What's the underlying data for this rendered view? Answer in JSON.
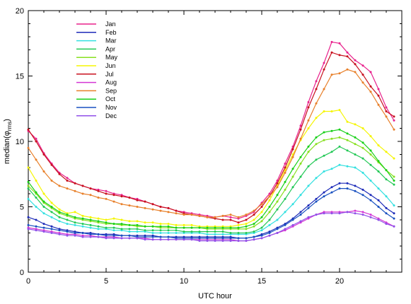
{
  "chart_data": {
    "type": "line",
    "title": "",
    "xlabel": "UTC hour",
    "ylabel": "median(φ",
    "ylabel_sub": "rms",
    "ylabel_close": ")",
    "xlim": [
      0,
      24
    ],
    "ylim": [
      0,
      20
    ],
    "xticks": [
      0,
      5,
      10,
      15,
      20
    ],
    "yticks": [
      0,
      5,
      10,
      15,
      20
    ],
    "grid": false,
    "legend_position": "top-left",
    "x": [
      0,
      0.5,
      1,
      1.5,
      2,
      2.5,
      3,
      3.5,
      4,
      4.5,
      5,
      5.5,
      6,
      6.5,
      7,
      7.5,
      8,
      8.5,
      9,
      9.5,
      10,
      10.5,
      11,
      11.5,
      12,
      12.5,
      13,
      13.5,
      14,
      14.5,
      15,
      15.5,
      16,
      16.5,
      17,
      17.5,
      18,
      18.5,
      19,
      19.5,
      20,
      20.5,
      21,
      21.5,
      22,
      22.5,
      23,
      23.5
    ],
    "series": [
      {
        "name": "Jan",
        "color": "#e8218c",
        "values": [
          10.8,
          10.2,
          9.1,
          8.3,
          7.6,
          7.2,
          6.8,
          6.6,
          6.4,
          6.3,
          6.2,
          6.0,
          5.9,
          5.7,
          5.6,
          5.4,
          5.2,
          5.0,
          4.9,
          4.7,
          4.6,
          4.5,
          4.4,
          4.3,
          4.2,
          4.3,
          4.2,
          4.1,
          4.3,
          4.6,
          5.3,
          6.0,
          7.0,
          8.3,
          9.6,
          11.2,
          13.0,
          14.6,
          16.0,
          17.6,
          17.5,
          16.8,
          16.2,
          15.8,
          15.3,
          14.0,
          12.6,
          11.6
        ]
      },
      {
        "name": "Feb",
        "color": "#1c2ab8",
        "values": [
          4.2,
          4.0,
          3.7,
          3.5,
          3.3,
          3.2,
          3.1,
          3.0,
          3.0,
          2.9,
          2.9,
          2.9,
          2.8,
          2.8,
          2.8,
          2.8,
          2.8,
          2.7,
          2.7,
          2.7,
          2.7,
          2.7,
          2.7,
          2.7,
          2.7,
          2.7,
          2.7,
          2.6,
          2.6,
          2.7,
          2.9,
          3.1,
          3.4,
          3.7,
          4.1,
          4.6,
          5.1,
          5.6,
          6.1,
          6.5,
          6.8,
          6.8,
          6.6,
          6.3,
          5.9,
          5.5,
          4.9,
          4.5
        ]
      },
      {
        "name": "Mar",
        "color": "#33e0e0",
        "values": [
          5.6,
          5.0,
          4.5,
          4.2,
          3.9,
          3.7,
          3.6,
          3.5,
          3.4,
          3.3,
          3.3,
          3.2,
          3.2,
          3.1,
          3.1,
          3.1,
          3.0,
          3.0,
          3.0,
          3.0,
          3.0,
          3.0,
          3.0,
          2.9,
          2.9,
          2.9,
          2.9,
          2.9,
          2.9,
          3.0,
          3.2,
          3.6,
          4.0,
          4.6,
          5.2,
          5.9,
          6.6,
          7.2,
          7.7,
          7.9,
          8.2,
          8.1,
          8.0,
          7.6,
          7.0,
          6.4,
          5.8,
          5.1
        ]
      },
      {
        "name": "Apr",
        "color": "#22c855",
        "values": [
          6.4,
          5.7,
          5.0,
          4.6,
          4.2,
          4.0,
          3.8,
          3.7,
          3.6,
          3.5,
          3.4,
          3.4,
          3.3,
          3.3,
          3.3,
          3.2,
          3.2,
          3.2,
          3.2,
          3.2,
          3.1,
          3.1,
          3.1,
          3.1,
          3.1,
          3.1,
          3.0,
          3.0,
          3.0,
          3.1,
          3.4,
          4.0,
          4.8,
          5.6,
          6.5,
          7.3,
          8.1,
          8.6,
          8.9,
          9.2,
          9.6,
          9.3,
          9.0,
          8.7,
          8.2,
          7.7,
          7.1,
          6.7
        ]
      },
      {
        "name": "May",
        "color": "#88e020",
        "values": [
          6.6,
          6.0,
          5.3,
          4.9,
          4.5,
          4.3,
          4.1,
          4.0,
          3.9,
          3.8,
          3.7,
          3.7,
          3.6,
          3.6,
          3.5,
          3.5,
          3.5,
          3.4,
          3.4,
          3.4,
          3.4,
          3.4,
          3.4,
          3.3,
          3.3,
          3.3,
          3.3,
          3.3,
          3.3,
          3.5,
          3.9,
          4.6,
          5.4,
          6.3,
          7.3,
          8.3,
          9.2,
          9.8,
          10.1,
          10.2,
          10.3,
          10.1,
          9.8,
          9.5,
          9.0,
          8.4,
          7.8,
          7.3
        ]
      },
      {
        "name": "Jun",
        "color": "#f5f500",
        "values": [
          8.0,
          7.0,
          6.0,
          5.3,
          4.8,
          4.5,
          4.6,
          4.3,
          4.2,
          4.1,
          4.0,
          4.1,
          4.0,
          3.9,
          3.9,
          3.8,
          3.8,
          3.7,
          3.7,
          3.6,
          3.6,
          3.6,
          3.5,
          3.5,
          3.5,
          3.5,
          3.5,
          3.6,
          3.7,
          4.0,
          4.6,
          5.5,
          6.6,
          7.8,
          9.0,
          10.1,
          11.0,
          11.8,
          12.3,
          12.3,
          12.4,
          11.5,
          11.3,
          11.0,
          10.4,
          9.7,
          9.2,
          8.7
        ]
      },
      {
        "name": "Jul",
        "color": "#c8101e",
        "values": [
          10.9,
          10.0,
          9.0,
          8.2,
          7.5,
          7.0,
          6.8,
          6.6,
          6.4,
          6.2,
          6.0,
          5.9,
          5.8,
          5.7,
          5.5,
          5.4,
          5.2,
          5.0,
          4.9,
          4.7,
          4.5,
          4.4,
          4.3,
          4.2,
          4.1,
          4.0,
          4.0,
          3.8,
          4.0,
          4.4,
          5.0,
          5.8,
          6.8,
          8.0,
          9.4,
          10.9,
          12.6,
          14.0,
          15.5,
          16.8,
          16.6,
          16.5,
          15.9,
          15.1,
          14.2,
          13.5,
          12.3,
          11.9
        ]
      },
      {
        "name": "Aug",
        "color": "#d434d4",
        "values": [
          3.4,
          3.3,
          3.2,
          3.1,
          3.0,
          2.9,
          2.9,
          2.8,
          2.8,
          2.7,
          2.7,
          2.7,
          2.6,
          2.6,
          2.6,
          2.6,
          2.5,
          2.5,
          2.5,
          2.5,
          2.5,
          2.5,
          2.5,
          2.5,
          2.5,
          2.5,
          2.5,
          2.4,
          2.4,
          2.5,
          2.6,
          2.8,
          3.0,
          3.2,
          3.5,
          3.8,
          4.1,
          4.4,
          4.6,
          4.6,
          4.6,
          4.6,
          4.7,
          4.6,
          4.4,
          4.1,
          3.8,
          3.5
        ]
      },
      {
        "name": "Sep",
        "color": "#e8802a",
        "values": [
          9.5,
          8.6,
          7.7,
          7.0,
          6.6,
          6.4,
          6.2,
          6.0,
          5.9,
          5.7,
          5.6,
          5.4,
          5.2,
          5.1,
          5.0,
          4.9,
          4.8,
          4.7,
          4.6,
          4.5,
          4.4,
          4.4,
          4.3,
          4.2,
          4.2,
          4.3,
          4.4,
          4.2,
          4.4,
          4.7,
          5.2,
          5.8,
          6.5,
          7.6,
          8.8,
          10.2,
          11.6,
          12.9,
          14.0,
          15.1,
          15.2,
          15.5,
          15.3,
          14.5,
          13.8,
          12.8,
          11.9,
          10.9
        ]
      },
      {
        "name": "Oct",
        "color": "#18d018",
        "values": [
          6.9,
          6.1,
          5.4,
          5.0,
          4.6,
          4.4,
          4.2,
          4.1,
          4.0,
          3.9,
          3.8,
          3.7,
          3.7,
          3.6,
          3.6,
          3.5,
          3.5,
          3.5,
          3.5,
          3.4,
          3.4,
          3.4,
          3.4,
          3.4,
          3.4,
          3.4,
          3.4,
          3.4,
          3.5,
          3.7,
          4.2,
          5.0,
          5.9,
          6.9,
          7.9,
          8.8,
          9.6,
          10.3,
          10.7,
          10.8,
          10.9,
          10.6,
          10.3,
          9.9,
          9.3,
          8.5,
          7.8,
          7.0
        ]
      },
      {
        "name": "Nov",
        "color": "#1850c0",
        "values": [
          3.6,
          3.5,
          3.4,
          3.3,
          3.2,
          3.1,
          3.0,
          3.0,
          2.9,
          2.9,
          2.8,
          2.8,
          2.8,
          2.8,
          2.7,
          2.7,
          2.7,
          2.7,
          2.7,
          2.6,
          2.6,
          2.6,
          2.6,
          2.6,
          2.6,
          2.6,
          2.6,
          2.6,
          2.6,
          2.7,
          2.8,
          3.0,
          3.3,
          3.6,
          4.0,
          4.4,
          4.9,
          5.4,
          5.8,
          6.1,
          6.4,
          6.4,
          6.2,
          5.9,
          5.5,
          5.0,
          4.5,
          4.1
        ]
      },
      {
        "name": "Dec",
        "color": "#9050e8",
        "values": [
          3.3,
          3.2,
          3.1,
          3.0,
          2.9,
          2.8,
          2.8,
          2.7,
          2.7,
          2.7,
          2.6,
          2.6,
          2.6,
          2.6,
          2.6,
          2.5,
          2.5,
          2.5,
          2.5,
          2.5,
          2.5,
          2.5,
          2.4,
          2.4,
          2.4,
          2.4,
          2.4,
          2.4,
          2.4,
          2.5,
          2.6,
          2.8,
          3.0,
          3.3,
          3.6,
          3.9,
          4.2,
          4.4,
          4.5,
          4.5,
          4.5,
          4.6,
          4.5,
          4.4,
          4.2,
          4.0,
          3.7,
          3.5
        ]
      }
    ]
  }
}
